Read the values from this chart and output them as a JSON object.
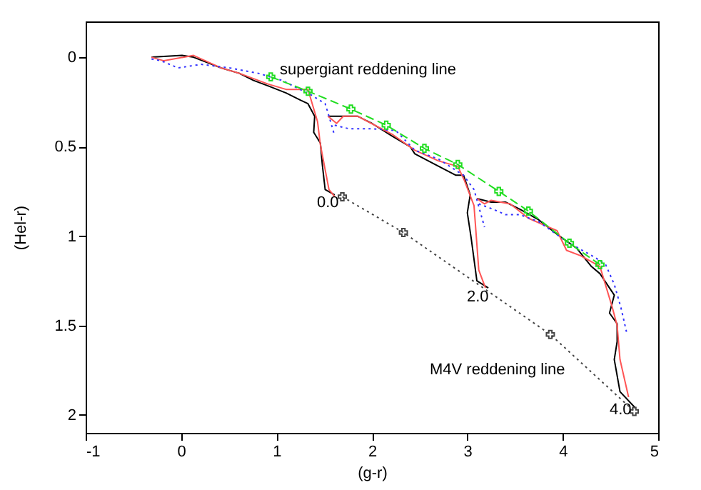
{
  "chart_data": {
    "type": "line",
    "xlabel": "(g-r)",
    "ylabel": "(Hel-r)",
    "xlim": [
      -1,
      5
    ],
    "xticks": [
      -1,
      0,
      1,
      2,
      3,
      4,
      5
    ],
    "ylim": [
      2.1,
      -0.2
    ],
    "yticks": [
      0,
      0.5,
      1,
      1.5,
      2
    ],
    "grid": false,
    "series": [
      {
        "color": "#000000",
        "line_style": "solid",
        "marker": "none",
        "x": [
          -0.31,
          0.01,
          0.13,
          0.42,
          0.61,
          0.76,
          0.91,
          1.1,
          1.25,
          1.33,
          1.4,
          1.39,
          1.46,
          1.48,
          1.51,
          1.61,
          null,
          1.54,
          1.85,
          2.0,
          2.21,
          2.4,
          2.45,
          2.7,
          2.88,
          2.96,
          3.03,
          3.0,
          3.04,
          3.1,
          3.22,
          null,
          3.1,
          3.25,
          3.4,
          3.55,
          3.75,
          3.94,
          4.15,
          4.3,
          4.39,
          4.54,
          4.49,
          4.57,
          4.57,
          4.54,
          4.6,
          4.76
        ],
        "values": [
          0,
          -0.01,
          0,
          0.06,
          0.09,
          0.13,
          0.16,
          0.2,
          0.24,
          0.26,
          0.33,
          0.42,
          0.48,
          0.6,
          0.74,
          0.77,
          null,
          0.33,
          0.33,
          0.37,
          0.44,
          0.5,
          0.54,
          0.61,
          0.66,
          0.66,
          0.77,
          0.87,
          1.01,
          1.25,
          1.29,
          null,
          0.79,
          0.81,
          0.81,
          0.85,
          0.91,
          0.99,
          1.07,
          1.17,
          1.21,
          1.33,
          1.43,
          1.49,
          1.59,
          1.69,
          1.87,
          1.96
        ]
      },
      {
        "color": "#ff5555",
        "line_style": "solid",
        "marker": "none",
        "x": [
          -0.31,
          -0.18,
          0.13,
          0.42,
          0.61,
          0.76,
          0.91,
          1.1,
          1.33,
          1.43,
          1.46,
          1.55,
          1.61,
          null,
          1.54,
          1.63,
          1.7,
          1.85,
          2.21,
          2.45,
          2.7,
          2.9,
          2.97,
          3.07,
          3.12,
          3.19,
          null,
          3.1,
          3.18,
          3.25,
          3.45,
          3.64,
          3.94,
          4.04,
          4.19,
          4.39,
          4.52,
          4.57,
          4.6,
          4.69
        ],
        "values": [
          0,
          0.02,
          -0.01,
          0.06,
          0.09,
          0.12,
          0.15,
          0.18,
          0.18,
          0.36,
          0.49,
          0.74,
          0.78,
          null,
          0.33,
          0.37,
          0.33,
          0.33,
          0.43,
          0.52,
          0.58,
          0.61,
          0.69,
          0.83,
          1.19,
          1.29,
          null,
          0.79,
          0.82,
          0.8,
          0.82,
          0.9,
          0.97,
          1.08,
          1.11,
          1.17,
          1.4,
          1.5,
          1.69,
          1.9
        ]
      },
      {
        "color": "#3333ff",
        "line_style": "dotted",
        "marker": "none",
        "x": [
          -0.31,
          -0.21,
          -0.03,
          0.21,
          0.51,
          0.81,
          1.06,
          1.36,
          1.51,
          1.55,
          1.61,
          null,
          1.61,
          1.76,
          2.0,
          2.25,
          2.45,
          2.7,
          2.96,
          3.07,
          3.18,
          null,
          3.12,
          3.27,
          3.4,
          3.55,
          3.75,
          4.04,
          4.34,
          4.45,
          4.54,
          4.61,
          4.67
        ],
        "values": [
          0.01,
          0.02,
          0.06,
          0.04,
          0.06,
          0.09,
          0.13,
          0.21,
          0.26,
          0.33,
          0.44,
          null,
          0.38,
          0.4,
          0.4,
          0.41,
          0.52,
          0.57,
          0.66,
          0.74,
          0.95,
          null,
          0.82,
          0.85,
          0.88,
          0.88,
          0.92,
          1.03,
          1.12,
          1.16,
          1.27,
          1.4,
          1.54
        ]
      },
      {
        "color": "#22dd22",
        "line_style": "dashed",
        "marker": "cross",
        "x": [
          0.94,
          1.33,
          1.78,
          2.15,
          2.55,
          2.9,
          3.33,
          3.64,
          4.07,
          4.39
        ],
        "values": [
          0.11,
          0.19,
          0.29,
          0.38,
          0.51,
          0.6,
          0.75,
          0.86,
          1.04,
          1.16
        ]
      },
      {
        "color": "#444444",
        "line_style": "dotted",
        "marker": "cross",
        "x": [
          1.69,
          2.33,
          3.87,
          4.75
        ],
        "values": [
          0.78,
          0.98,
          1.55,
          1.98
        ]
      }
    ],
    "annotations": [
      "supergiant reddening line",
      "M4V reddening line",
      "0.0",
      "2.0",
      "4.0"
    ]
  }
}
